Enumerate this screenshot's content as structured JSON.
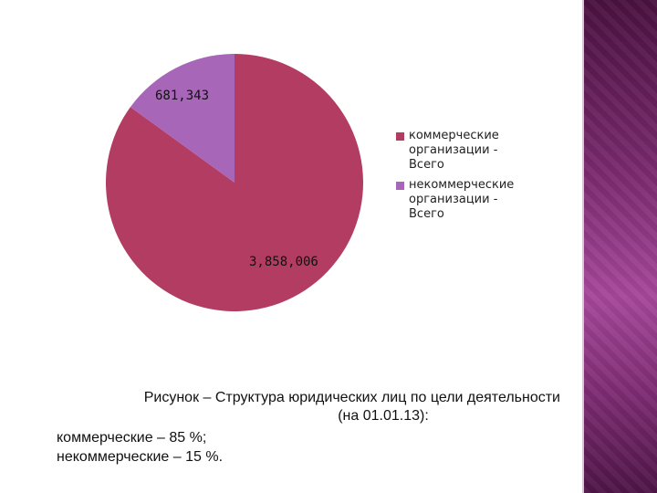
{
  "colors": {
    "commercial": "#b23c62",
    "noncommercial": "#a866b8",
    "side_band": "#7a2a6e"
  },
  "chart_data": {
    "type": "pie",
    "slices": [
      {
        "label": "коммерческие организации - Всего",
        "value": 3858006,
        "value_label": "3,858,006",
        "color": "#b23c62"
      },
      {
        "label": "некоммерческие организации - Всего",
        "value": 681343,
        "value_label": "681,343",
        "color": "#a866b8"
      }
    ],
    "legend_position": "right"
  },
  "legend": {
    "items": [
      {
        "label": "коммерческие\nорганизации -\nВсего"
      },
      {
        "label": "некоммерческие\nорганизации -\nВсего"
      }
    ]
  },
  "caption": {
    "line1": "Рисунок – Структура юридических лиц по цели деятельности",
    "line2": "(на 01.01.13):"
  },
  "shares": {
    "commercial": "коммерческие – 85 %;",
    "noncommercial": "некоммерческие – 15 %."
  }
}
